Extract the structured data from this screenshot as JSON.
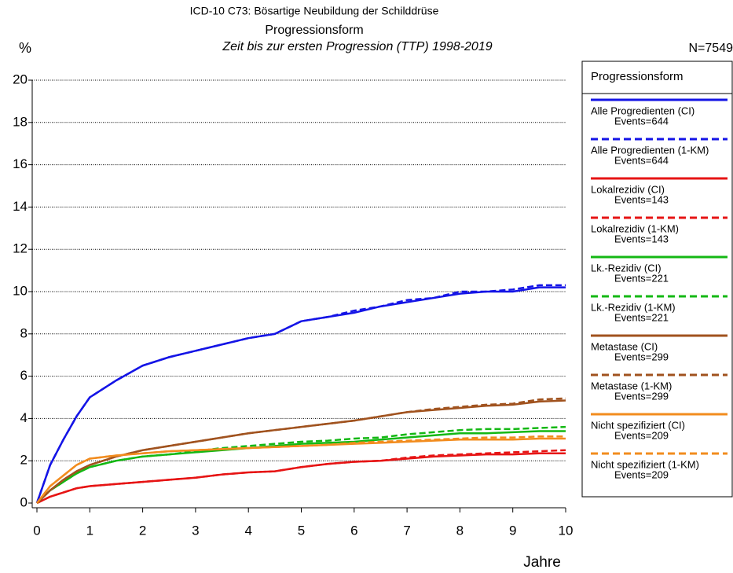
{
  "chart_data": {
    "type": "line",
    "title": "ICD-10 C73: Bösartige Neubildung der Schilddrüse",
    "subtitle": "Progressionsform",
    "caption": "Zeit bis zur ersten Progression (TTP) 1998-2019",
    "n_label": "N=7549",
    "ylabel": "%",
    "xlabel": "Jahre",
    "legend_title": "Progressionsform",
    "legend": "right",
    "grid": true,
    "xlim": [
      0,
      10
    ],
    "xticks": [
      0,
      1,
      2,
      3,
      4,
      5,
      6,
      7,
      8,
      9,
      10
    ],
    "ylim": [
      0,
      20
    ],
    "yticks": [
      0,
      2,
      4,
      6,
      8,
      10,
      12,
      14,
      16,
      18,
      20
    ],
    "x": [
      0,
      0.25,
      0.5,
      0.75,
      1,
      1.5,
      2,
      2.5,
      3,
      3.5,
      4,
      4.5,
      5,
      5.5,
      6,
      6.5,
      7,
      7.5,
      8,
      8.5,
      9,
      9.5,
      10
    ],
    "series": [
      {
        "name": "Alle Progredienten (CI)",
        "events": "Events=644",
        "color": "#1414e6",
        "linestyle": "solid",
        "values": [
          0,
          1.8,
          3.0,
          4.1,
          5.0,
          5.8,
          6.5,
          6.9,
          7.2,
          7.5,
          7.8,
          8.0,
          8.6,
          8.8,
          9.0,
          9.3,
          9.5,
          9.7,
          9.9,
          10.0,
          10.0,
          10.2,
          10.2
        ]
      },
      {
        "name": "Alle Progredienten (1-KM)",
        "events": "Events=644",
        "color": "#1414e6",
        "linestyle": "dashed",
        "values": [
          0,
          1.8,
          3.0,
          4.1,
          5.0,
          5.8,
          6.5,
          6.9,
          7.2,
          7.5,
          7.8,
          8.0,
          8.6,
          8.8,
          9.1,
          9.3,
          9.6,
          9.7,
          10.0,
          10.0,
          10.1,
          10.3,
          10.3
        ]
      },
      {
        "name": "Lokalrezidiv (CI)",
        "events": "Events=143",
        "color": "#e61414",
        "linestyle": "solid",
        "values": [
          0,
          0.3,
          0.5,
          0.7,
          0.8,
          0.9,
          1.0,
          1.1,
          1.2,
          1.35,
          1.45,
          1.5,
          1.7,
          1.85,
          1.95,
          2.0,
          2.1,
          2.2,
          2.25,
          2.3,
          2.3,
          2.35,
          2.35
        ]
      },
      {
        "name": "Lokalrezidiv (1-KM)",
        "events": "Events=143",
        "color": "#e61414",
        "linestyle": "dashed",
        "values": [
          0,
          0.3,
          0.5,
          0.7,
          0.8,
          0.9,
          1.0,
          1.1,
          1.2,
          1.35,
          1.45,
          1.5,
          1.7,
          1.85,
          1.95,
          2.0,
          2.15,
          2.25,
          2.3,
          2.35,
          2.4,
          2.45,
          2.5
        ]
      },
      {
        "name": "Lk.-Rezidiv (CI)",
        "events": "Events=221",
        "color": "#14b814",
        "linestyle": "solid",
        "values": [
          0,
          0.6,
          1.0,
          1.4,
          1.7,
          2.0,
          2.2,
          2.3,
          2.4,
          2.5,
          2.6,
          2.7,
          2.8,
          2.85,
          2.9,
          3.0,
          3.1,
          3.2,
          3.3,
          3.3,
          3.35,
          3.4,
          3.4
        ]
      },
      {
        "name": "Lk.-Rezidiv (1-KM)",
        "events": "Events=221",
        "color": "#14b814",
        "linestyle": "dashed",
        "values": [
          0,
          0.6,
          1.0,
          1.4,
          1.7,
          2.0,
          2.2,
          2.3,
          2.45,
          2.6,
          2.7,
          2.8,
          2.9,
          2.95,
          3.05,
          3.1,
          3.25,
          3.35,
          3.45,
          3.5,
          3.5,
          3.55,
          3.6
        ]
      },
      {
        "name": "Metastase (CI)",
        "events": "Events=299",
        "color": "#a0521e",
        "linestyle": "solid",
        "values": [
          0,
          0.6,
          1.1,
          1.5,
          1.8,
          2.2,
          2.5,
          2.7,
          2.9,
          3.1,
          3.3,
          3.45,
          3.6,
          3.75,
          3.9,
          4.1,
          4.3,
          4.4,
          4.5,
          4.6,
          4.65,
          4.8,
          4.85
        ]
      },
      {
        "name": "Metastase (1-KM)",
        "events": "Events=299",
        "color": "#a0521e",
        "linestyle": "dashed",
        "values": [
          0,
          0.6,
          1.1,
          1.5,
          1.8,
          2.2,
          2.5,
          2.7,
          2.9,
          3.1,
          3.3,
          3.45,
          3.6,
          3.75,
          3.9,
          4.1,
          4.3,
          4.45,
          4.55,
          4.65,
          4.7,
          4.9,
          4.95
        ]
      },
      {
        "name": "Nicht spezifiziert (CI)",
        "events": "Events=209",
        "color": "#f28c1e",
        "linestyle": "solid",
        "values": [
          0,
          0.8,
          1.3,
          1.8,
          2.1,
          2.25,
          2.35,
          2.45,
          2.5,
          2.55,
          2.6,
          2.65,
          2.7,
          2.75,
          2.8,
          2.85,
          2.9,
          2.95,
          3.0,
          3.0,
          3.0,
          3.05,
          3.05
        ]
      },
      {
        "name": "Nicht spezifiziert (1-KM)",
        "events": "Events=209",
        "color": "#f28c1e",
        "linestyle": "dashed",
        "values": [
          0,
          0.8,
          1.3,
          1.8,
          2.1,
          2.25,
          2.35,
          2.45,
          2.5,
          2.55,
          2.6,
          2.65,
          2.7,
          2.75,
          2.85,
          2.9,
          2.95,
          3.0,
          3.05,
          3.1,
          3.1,
          3.15,
          3.15
        ]
      }
    ]
  }
}
